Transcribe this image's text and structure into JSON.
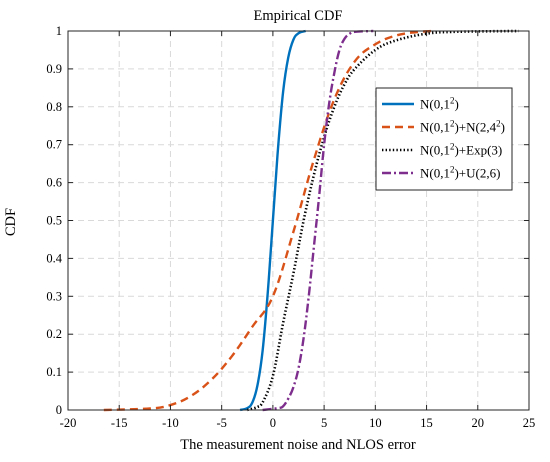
{
  "colors": {
    "background": "#ffffff",
    "axis": "#262626",
    "grid": "#d9d9d9"
  },
  "chart_data": {
    "type": "line",
    "title": "Empirical CDF",
    "xlabel": "The measurement noise and NLOS error",
    "ylabel": "CDF",
    "xlim": [
      -20,
      25
    ],
    "ylim": [
      0,
      1
    ],
    "xticks": [
      "-20",
      "-15",
      "-10",
      "-5",
      "0",
      "5",
      "10",
      "15",
      "20",
      "25"
    ],
    "yticks": [
      "0",
      "0.1",
      "0.2",
      "0.3",
      "0.4",
      "0.5",
      "0.6",
      "0.7",
      "0.8",
      "0.9",
      "1"
    ],
    "grid": true,
    "legend_position": "right",
    "series": [
      {
        "name_base": "N(0,1",
        "name_sup": "2",
        "name_rest": ")",
        "color": "#0072bd",
        "style": "solid",
        "points": [
          [
            -3.2,
            0
          ],
          [
            -2.5,
            0.005
          ],
          [
            -2,
            0.02
          ],
          [
            -1.5,
            0.066
          ],
          [
            -1,
            0.157
          ],
          [
            -0.5,
            0.31
          ],
          [
            0,
            0.5
          ],
          [
            0.5,
            0.69
          ],
          [
            1,
            0.84
          ],
          [
            1.5,
            0.93
          ],
          [
            2,
            0.977
          ],
          [
            2.5,
            0.994
          ],
          [
            3.2,
            1
          ]
        ]
      },
      {
        "name_base": "N(0,1",
        "name_sup": "2",
        "name_mid": ")+N(2,4",
        "name_sup2": "2",
        "name_rest": ")",
        "color": "#d95319",
        "style": "dashed",
        "points": [
          [
            -16.5,
            0
          ],
          [
            -12,
            0.004
          ],
          [
            -10,
            0.013
          ],
          [
            -8,
            0.037
          ],
          [
            -6,
            0.08
          ],
          [
            -4,
            0.142
          ],
          [
            -2,
            0.22
          ],
          [
            0,
            0.3
          ],
          [
            2,
            0.47
          ],
          [
            4,
            0.66
          ],
          [
            6,
            0.82
          ],
          [
            8,
            0.92
          ],
          [
            10,
            0.965
          ],
          [
            12,
            0.988
          ],
          [
            14,
            0.997
          ],
          [
            15.5,
            1
          ]
        ]
      },
      {
        "name_base": "N(0,1",
        "name_sup": "2",
        "name_rest": ")+Exp(3)",
        "color": "#000000",
        "style": "dotted",
        "points": [
          [
            -2.5,
            0
          ],
          [
            -1.5,
            0.008
          ],
          [
            -1,
            0.02
          ],
          [
            0,
            0.09
          ],
          [
            1,
            0.23
          ],
          [
            2,
            0.36
          ],
          [
            3,
            0.5
          ],
          [
            4,
            0.62
          ],
          [
            5,
            0.72
          ],
          [
            6,
            0.8
          ],
          [
            7,
            0.86
          ],
          [
            8,
            0.9
          ],
          [
            10,
            0.95
          ],
          [
            12,
            0.975
          ],
          [
            15,
            0.993
          ],
          [
            18,
            0.998
          ],
          [
            24,
            1
          ]
        ]
      },
      {
        "name_base": "N(0,1",
        "name_sup": "2",
        "name_rest": ")+U(2,6)",
        "color": "#7e2f8e",
        "style": "dashdot",
        "points": [
          [
            -1,
            0
          ],
          [
            0.5,
            0.005
          ],
          [
            1,
            0.01
          ],
          [
            1.5,
            0.03
          ],
          [
            2,
            0.06
          ],
          [
            2.5,
            0.11
          ],
          [
            3,
            0.19
          ],
          [
            3.5,
            0.3
          ],
          [
            4,
            0.43
          ],
          [
            4.5,
            0.56
          ],
          [
            5,
            0.7
          ],
          [
            5.5,
            0.81
          ],
          [
            6,
            0.89
          ],
          [
            6.5,
            0.95
          ],
          [
            7,
            0.98
          ],
          [
            7.5,
            0.993
          ],
          [
            8,
            0.998
          ],
          [
            9.8,
            1
          ]
        ]
      }
    ]
  }
}
